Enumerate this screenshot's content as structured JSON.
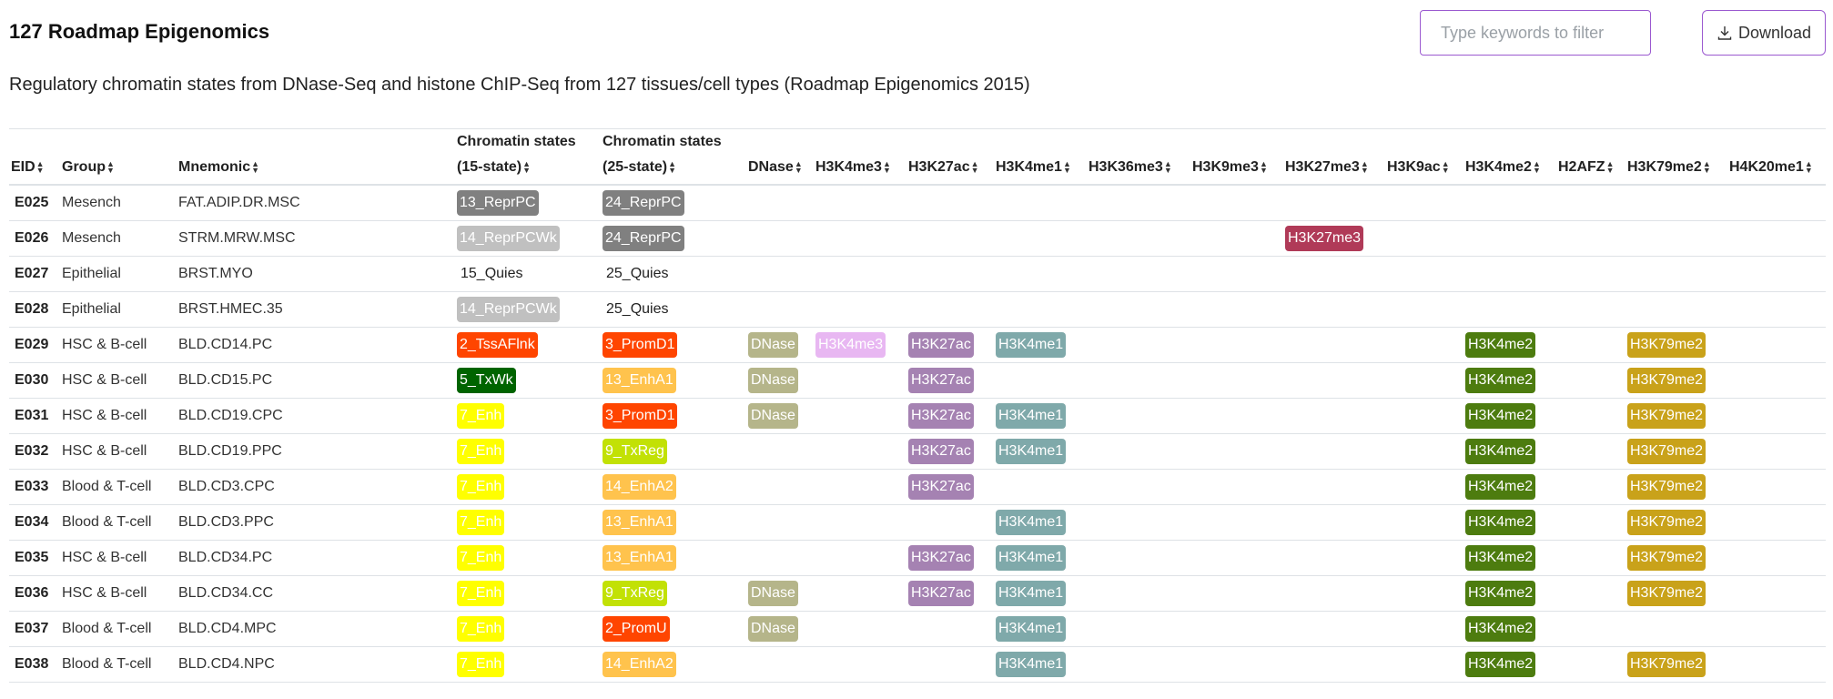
{
  "page": {
    "title": "127 Roadmap Epigenomics",
    "subtitle": "Regulatory chromatin states from DNase-Seq and histone ChIP-Seq from 127 tissues/cell types (Roadmap Epigenomics 2015)"
  },
  "search": {
    "placeholder": "Type keywords to filter"
  },
  "toolbar": {
    "download_label": "Download",
    "download_icon": "download-icon"
  },
  "colors": {
    "accent": "#9b59d0",
    "13_ReprPC": "#808080",
    "24_ReprPC": "#808080",
    "14_ReprPCWk": "#c0c0c0",
    "2_TssAFlnk": "#ff4500",
    "3_PromD1": "#ff4500",
    "2_PromU": "#ff4500",
    "5_TxWk": "#006400",
    "7_Enh": "#ffff00",
    "13_EnhA1": "#ffc34d",
    "14_EnhA2": "#ffc34d",
    "9_TxReg": "#c2e105",
    "DNase": "#b5b58a",
    "H3K4me3": "#e8b7f2",
    "H3K27ac": "#a582b2",
    "H3K4me1": "#7fa9aa",
    "H3K27me3": "#b03a58",
    "H3K4me2": "#4d7c0f",
    "H3K79me2": "#c9a21a"
  },
  "table": {
    "columns": [
      {
        "key": "eid",
        "label": "EID",
        "label2": ""
      },
      {
        "key": "group",
        "label": "Group",
        "label2": ""
      },
      {
        "key": "mnemonic",
        "label": "Mnemonic",
        "label2": ""
      },
      {
        "key": "cs15",
        "label": "Chromatin states",
        "label2": "(15-state)"
      },
      {
        "key": "cs25",
        "label": "Chromatin states",
        "label2": "(25-state)"
      },
      {
        "key": "dnase",
        "label": "DNase",
        "label2": ""
      },
      {
        "key": "h3k4me3",
        "label": "H3K4me3",
        "label2": ""
      },
      {
        "key": "h3k27ac",
        "label": "H3K27ac",
        "label2": ""
      },
      {
        "key": "h3k4me1",
        "label": "H3K4me1",
        "label2": ""
      },
      {
        "key": "h3k36me3",
        "label": "H3K36me3",
        "label2": ""
      },
      {
        "key": "h3k9me3",
        "label": "H3K9me3",
        "label2": ""
      },
      {
        "key": "h3k27me3",
        "label": "H3K27me3",
        "label2": ""
      },
      {
        "key": "h3k9ac",
        "label": "H3K9ac",
        "label2": ""
      },
      {
        "key": "h3k4me2",
        "label": "H3K4me2",
        "label2": ""
      },
      {
        "key": "h2afz",
        "label": "H2AFZ",
        "label2": ""
      },
      {
        "key": "h3k79me2",
        "label": "H3K79me2",
        "label2": ""
      },
      {
        "key": "h4k20me1",
        "label": "H4K20me1",
        "label2": ""
      }
    ],
    "rows": [
      {
        "eid": "E025",
        "group": "Mesench",
        "mnemonic": "FAT.ADIP.DR.MSC",
        "cs15": "13_ReprPC",
        "cs25": "24_ReprPC",
        "dnase": "",
        "h3k4me3": "",
        "h3k27ac": "",
        "h3k4me1": "",
        "h3k36me3": "",
        "h3k9me3": "",
        "h3k27me3": "",
        "h3k9ac": "",
        "h3k4me2": "",
        "h2afz": "",
        "h3k79me2": "",
        "h4k20me1": ""
      },
      {
        "eid": "E026",
        "group": "Mesench",
        "mnemonic": "STRM.MRW.MSC",
        "cs15": "14_ReprPCWk",
        "cs25": "24_ReprPC",
        "dnase": "",
        "h3k4me3": "",
        "h3k27ac": "",
        "h3k4me1": "",
        "h3k36me3": "",
        "h3k9me3": "",
        "h3k27me3": "H3K27me3",
        "h3k9ac": "",
        "h3k4me2": "",
        "h2afz": "",
        "h3k79me2": "",
        "h4k20me1": ""
      },
      {
        "eid": "E027",
        "group": "Epithelial",
        "mnemonic": "BRST.MYO",
        "cs15": "15_Quies",
        "cs25": "25_Quies",
        "dnase": "",
        "h3k4me3": "",
        "h3k27ac": "",
        "h3k4me1": "",
        "h3k36me3": "",
        "h3k9me3": "",
        "h3k27me3": "",
        "h3k9ac": "",
        "h3k4me2": "",
        "h2afz": "",
        "h3k79me2": "",
        "h4k20me1": ""
      },
      {
        "eid": "E028",
        "group": "Epithelial",
        "mnemonic": "BRST.HMEC.35",
        "cs15": "14_ReprPCWk",
        "cs25": "25_Quies",
        "dnase": "",
        "h3k4me3": "",
        "h3k27ac": "",
        "h3k4me1": "",
        "h3k36me3": "",
        "h3k9me3": "",
        "h3k27me3": "",
        "h3k9ac": "",
        "h3k4me2": "",
        "h2afz": "",
        "h3k79me2": "",
        "h4k20me1": ""
      },
      {
        "eid": "E029",
        "group": "HSC & B-cell",
        "mnemonic": "BLD.CD14.PC",
        "cs15": "2_TssAFlnk",
        "cs25": "3_PromD1",
        "dnase": "DNase",
        "h3k4me3": "H3K4me3",
        "h3k27ac": "H3K27ac",
        "h3k4me1": "H3K4me1",
        "h3k36me3": "",
        "h3k9me3": "",
        "h3k27me3": "",
        "h3k9ac": "",
        "h3k4me2": "H3K4me2",
        "h2afz": "",
        "h3k79me2": "H3K79me2",
        "h4k20me1": ""
      },
      {
        "eid": "E030",
        "group": "HSC & B-cell",
        "mnemonic": "BLD.CD15.PC",
        "cs15": "5_TxWk",
        "cs25": "13_EnhA1",
        "dnase": "DNase",
        "h3k4me3": "",
        "h3k27ac": "H3K27ac",
        "h3k4me1": "",
        "h3k36me3": "",
        "h3k9me3": "",
        "h3k27me3": "",
        "h3k9ac": "",
        "h3k4me2": "H3K4me2",
        "h2afz": "",
        "h3k79me2": "H3K79me2",
        "h4k20me1": ""
      },
      {
        "eid": "E031",
        "group": "HSC & B-cell",
        "mnemonic": "BLD.CD19.CPC",
        "cs15": "7_Enh",
        "cs25": "3_PromD1",
        "dnase": "DNase",
        "h3k4me3": "",
        "h3k27ac": "H3K27ac",
        "h3k4me1": "H3K4me1",
        "h3k36me3": "",
        "h3k9me3": "",
        "h3k27me3": "",
        "h3k9ac": "",
        "h3k4me2": "H3K4me2",
        "h2afz": "",
        "h3k79me2": "H3K79me2",
        "h4k20me1": ""
      },
      {
        "eid": "E032",
        "group": "HSC & B-cell",
        "mnemonic": "BLD.CD19.PPC",
        "cs15": "7_Enh",
        "cs25": "9_TxReg",
        "dnase": "",
        "h3k4me3": "",
        "h3k27ac": "H3K27ac",
        "h3k4me1": "H3K4me1",
        "h3k36me3": "",
        "h3k9me3": "",
        "h3k27me3": "",
        "h3k9ac": "",
        "h3k4me2": "H3K4me2",
        "h2afz": "",
        "h3k79me2": "H3K79me2",
        "h4k20me1": ""
      },
      {
        "eid": "E033",
        "group": "Blood & T-cell",
        "mnemonic": "BLD.CD3.CPC",
        "cs15": "7_Enh",
        "cs25": "14_EnhA2",
        "dnase": "",
        "h3k4me3": "",
        "h3k27ac": "H3K27ac",
        "h3k4me1": "",
        "h3k36me3": "",
        "h3k9me3": "",
        "h3k27me3": "",
        "h3k9ac": "",
        "h3k4me2": "H3K4me2",
        "h2afz": "",
        "h3k79me2": "H3K79me2",
        "h4k20me1": ""
      },
      {
        "eid": "E034",
        "group": "Blood & T-cell",
        "mnemonic": "BLD.CD3.PPC",
        "cs15": "7_Enh",
        "cs25": "13_EnhA1",
        "dnase": "",
        "h3k4me3": "",
        "h3k27ac": "",
        "h3k4me1": "H3K4me1",
        "h3k36me3": "",
        "h3k9me3": "",
        "h3k27me3": "",
        "h3k9ac": "",
        "h3k4me2": "H3K4me2",
        "h2afz": "",
        "h3k79me2": "H3K79me2",
        "h4k20me1": ""
      },
      {
        "eid": "E035",
        "group": "HSC & B-cell",
        "mnemonic": "BLD.CD34.PC",
        "cs15": "7_Enh",
        "cs25": "13_EnhA1",
        "dnase": "",
        "h3k4me3": "",
        "h3k27ac": "H3K27ac",
        "h3k4me1": "H3K4me1",
        "h3k36me3": "",
        "h3k9me3": "",
        "h3k27me3": "",
        "h3k9ac": "",
        "h3k4me2": "H3K4me2",
        "h2afz": "",
        "h3k79me2": "H3K79me2",
        "h4k20me1": ""
      },
      {
        "eid": "E036",
        "group": "HSC & B-cell",
        "mnemonic": "BLD.CD34.CC",
        "cs15": "7_Enh",
        "cs25": "9_TxReg",
        "dnase": "DNase",
        "h3k4me3": "",
        "h3k27ac": "H3K27ac",
        "h3k4me1": "H3K4me1",
        "h3k36me3": "",
        "h3k9me3": "",
        "h3k27me3": "",
        "h3k9ac": "",
        "h3k4me2": "H3K4me2",
        "h2afz": "",
        "h3k79me2": "H3K79me2",
        "h4k20me1": ""
      },
      {
        "eid": "E037",
        "group": "Blood & T-cell",
        "mnemonic": "BLD.CD4.MPC",
        "cs15": "7_Enh",
        "cs25": "2_PromU",
        "dnase": "DNase",
        "h3k4me3": "",
        "h3k27ac": "",
        "h3k4me1": "H3K4me1",
        "h3k36me3": "",
        "h3k9me3": "",
        "h3k27me3": "",
        "h3k9ac": "",
        "h3k4me2": "H3K4me2",
        "h2afz": "",
        "h3k79me2": "",
        "h4k20me1": ""
      },
      {
        "eid": "E038",
        "group": "Blood & T-cell",
        "mnemonic": "BLD.CD4.NPC",
        "cs15": "7_Enh",
        "cs25": "14_EnhA2",
        "dnase": "",
        "h3k4me3": "",
        "h3k27ac": "",
        "h3k4me1": "H3K4me1",
        "h3k36me3": "",
        "h3k9me3": "",
        "h3k27me3": "",
        "h3k9ac": "",
        "h3k4me2": "H3K4me2",
        "h2afz": "",
        "h3k79me2": "H3K79me2",
        "h4k20me1": ""
      }
    ]
  }
}
